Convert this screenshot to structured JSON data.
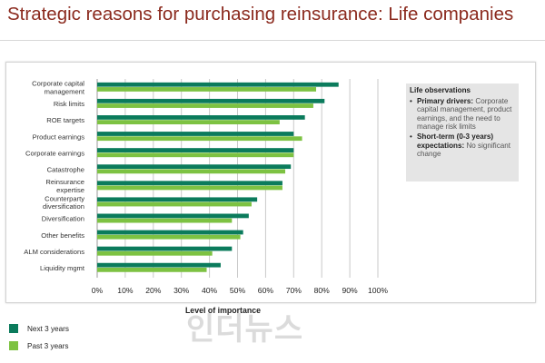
{
  "page": {
    "title": "Strategic reasons for purchasing reinsurance: Life companies"
  },
  "colors": {
    "next": "#0b7b5c",
    "past": "#7dc242",
    "title": "#8b2a1e"
  },
  "chart_data": {
    "type": "bar",
    "orientation": "horizontal",
    "categories": [
      "Corporate capital management",
      "Risk limits",
      "ROE targets",
      "Product earnings",
      "Corporate earnings",
      "Catastrophe",
      "Reinsurance expertise",
      "Counterparty diversification",
      "Diversification",
      "Other benefits",
      "ALM considerations",
      "Liquidity mgmt"
    ],
    "series": [
      {
        "name": "Next 3 years",
        "color": "#0b7b5c",
        "values": [
          86,
          81,
          74,
          70,
          70,
          69,
          66,
          57,
          54,
          52,
          48,
          44
        ]
      },
      {
        "name": "Past 3 years",
        "color": "#7dc242",
        "values": [
          78,
          77,
          65,
          73,
          70,
          67,
          66,
          55,
          48,
          51,
          41,
          39
        ]
      }
    ],
    "xlim": [
      0,
      100
    ],
    "xticks": [
      "0%",
      "10%",
      "20%",
      "30%",
      "40%",
      "50%",
      "60%",
      "70%",
      "80%",
      "90%",
      "100%"
    ],
    "xlabel": "Level of importance",
    "grid": true,
    "legend": "bottom-left"
  },
  "observations": {
    "title": "Life observations",
    "items": [
      {
        "bold": "Primary drivers:",
        "text": "Corporate capital management, product earnings, and the need to manage risk limits"
      },
      {
        "bold": "Short-term (0-3 years) expectations:",
        "text": "No significant change"
      }
    ]
  },
  "legend": {
    "next_label": "Next 3 years",
    "past_label": "Past 3 years"
  },
  "watermark": {
    "text": "인더뉴스"
  }
}
